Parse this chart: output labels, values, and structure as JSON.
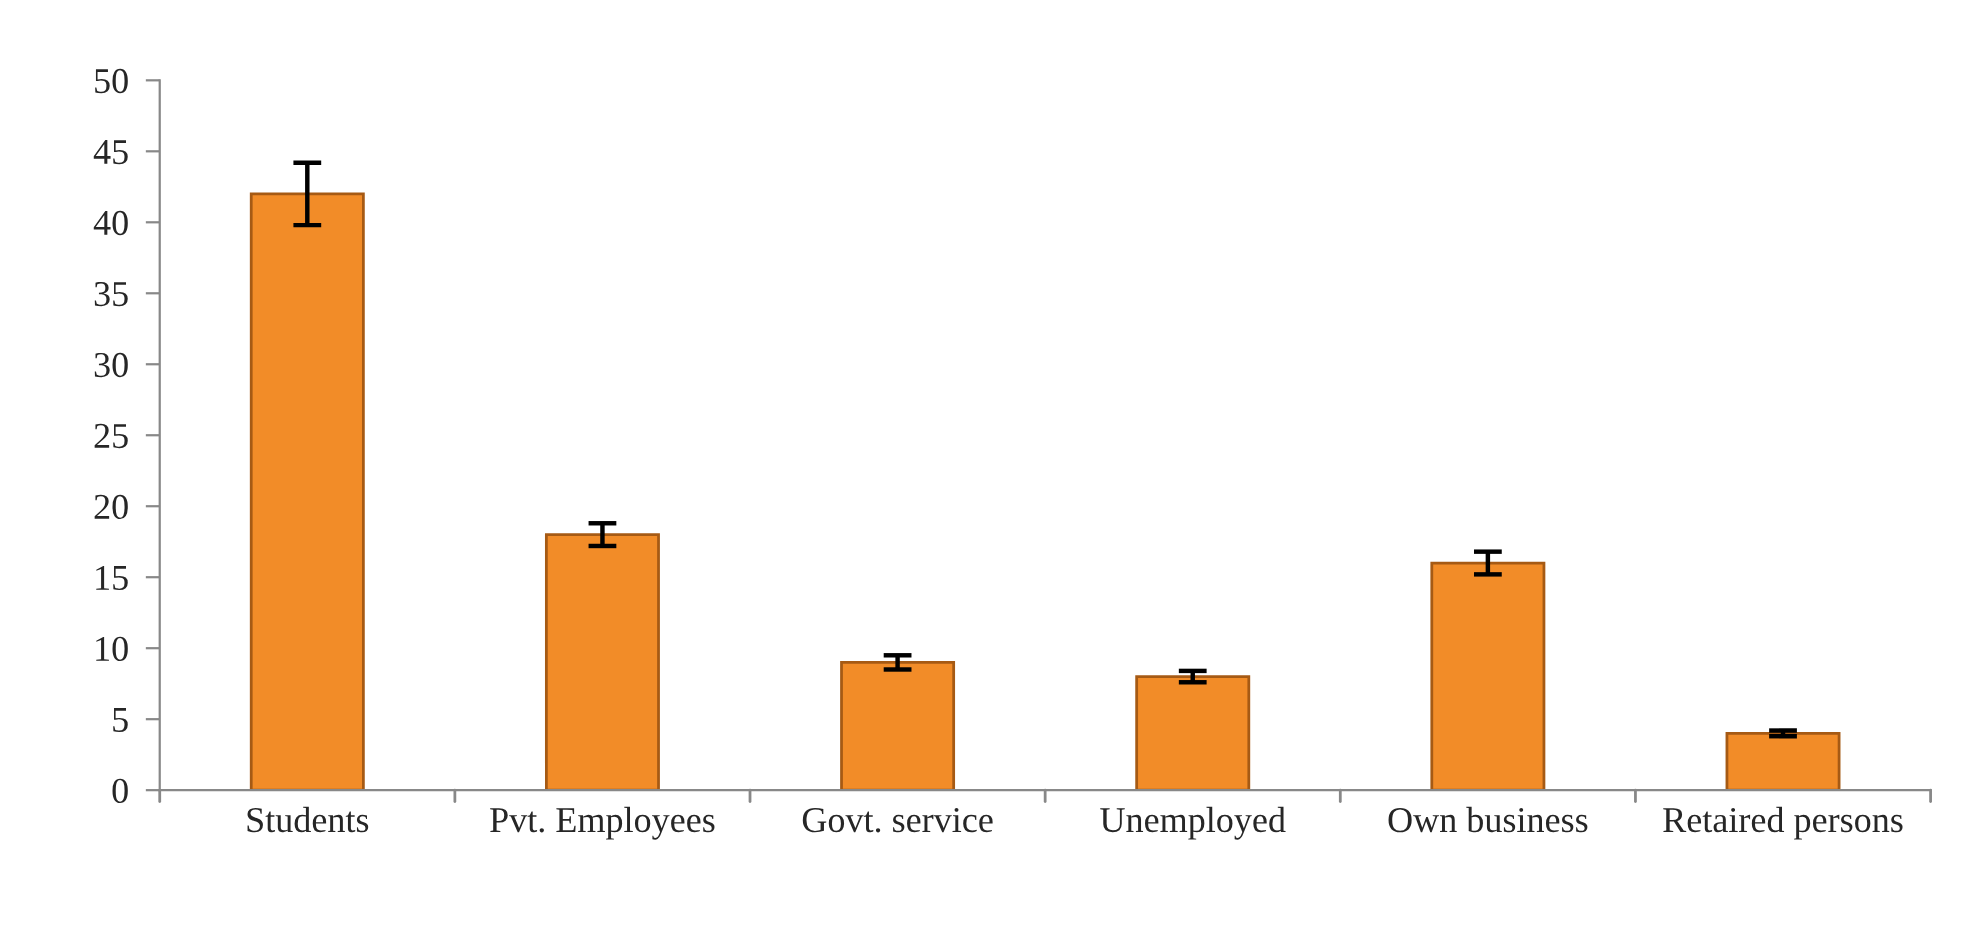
{
  "chart_data": {
    "type": "bar",
    "categories": [
      "Students",
      "Pvt. Employees",
      "Govt. service",
      "Unemployed",
      "Own business",
      "Retaired persons"
    ],
    "values": [
      42,
      18,
      9,
      8,
      16,
      4
    ],
    "errors": [
      2.2,
      0.8,
      0.5,
      0.4,
      0.8,
      0.2
    ],
    "color": "#f28c28",
    "ylim": [
      0,
      50
    ],
    "yticks": [
      0,
      5,
      10,
      15,
      20,
      25,
      30,
      35,
      40,
      45,
      50
    ],
    "grid": false,
    "legend": false
  }
}
